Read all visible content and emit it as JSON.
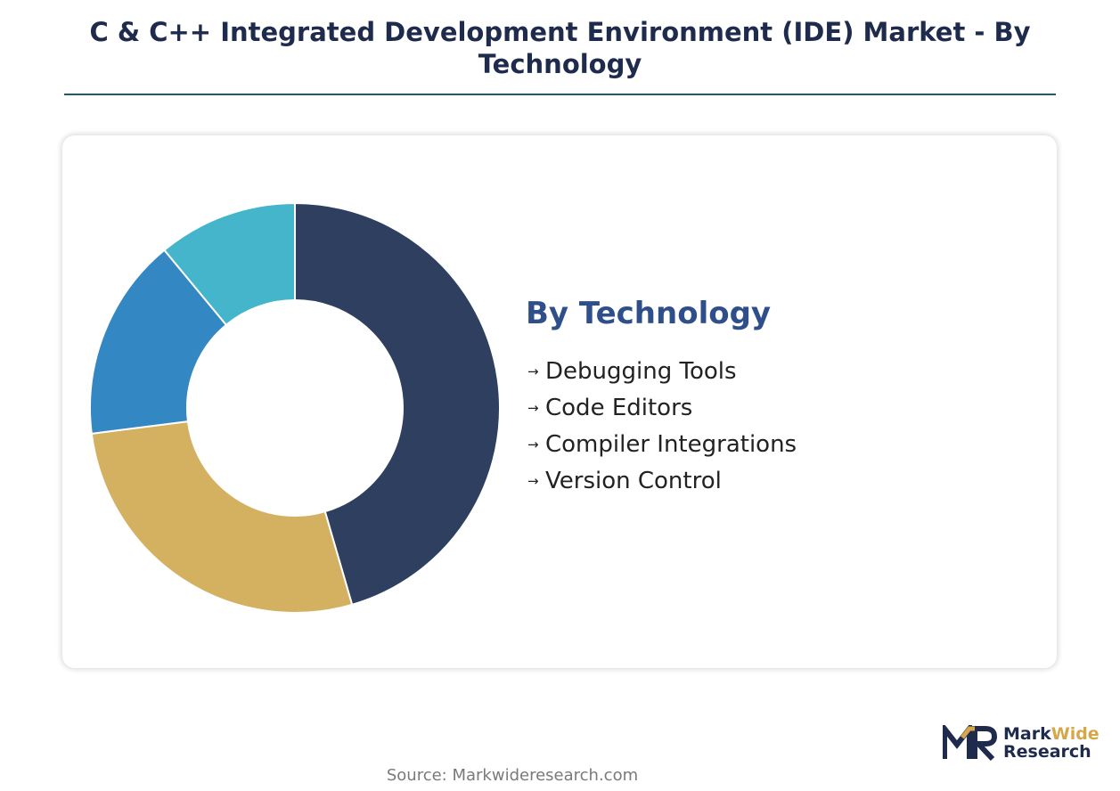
{
  "header": {
    "title": "C & C++ Integrated Development Environment (IDE) Market - By Technology"
  },
  "legend": {
    "title": "By Technology",
    "arrow": "→",
    "items": [
      {
        "label": "Debugging Tools"
      },
      {
        "label": "Code Editors"
      },
      {
        "label": "Compiler Integrations"
      },
      {
        "label": "Version Control"
      }
    ]
  },
  "chart_data": {
    "type": "pie",
    "style": "donut",
    "title": "By Technology",
    "categories": [
      "Debugging Tools",
      "Code Editors",
      "Compiler Integrations",
      "Version Control"
    ],
    "values": [
      45.5,
      27.5,
      16.0,
      11.0
    ],
    "unit": "%",
    "colors": [
      "#2e3f5f",
      "#d4b160",
      "#3387c3",
      "#45b5cc"
    ],
    "legend_position": "right"
  },
  "footer": {
    "source": "Source: Markwideresearch.com"
  },
  "logo": {
    "word1": "Mark",
    "word2": "Wide",
    "word3": "Research",
    "colors": {
      "navy": "#1f2b4d",
      "gold": "#d4a84a"
    }
  }
}
